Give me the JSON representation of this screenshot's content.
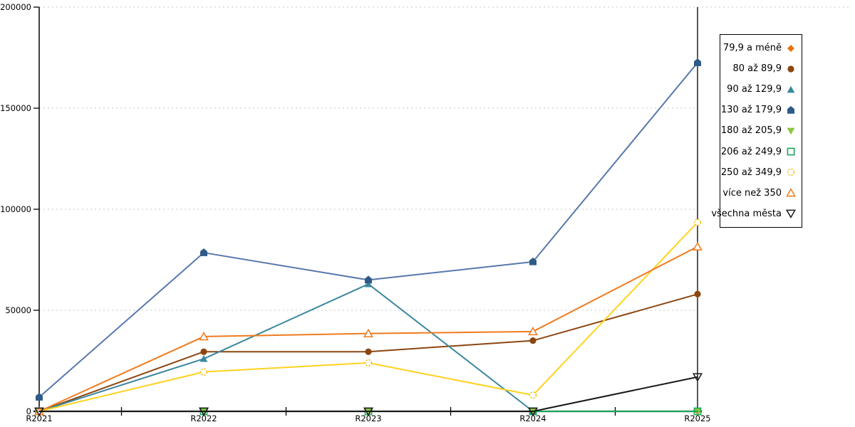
{
  "chart_data": {
    "type": "line",
    "title": "",
    "xlabel": "",
    "ylabel": "",
    "categories": [
      "R2021",
      "R2022",
      "R2023",
      "R2024",
      "R2025"
    ],
    "ylim": [
      0,
      200000
    ],
    "yticks": [
      0,
      50000,
      100000,
      150000,
      200000
    ],
    "ytick_labels": [
      "0",
      "50000",
      "100000",
      "150000",
      "200000"
    ],
    "grid": "horizontal-dashed",
    "legend_position": "right",
    "series": [
      {
        "name": "79,9 a méně",
        "marker": "diamond",
        "color": "#E2760F",
        "line_color": "#E2760F",
        "values": [
          0,
          null,
          null,
          null,
          0
        ]
      },
      {
        "name": "80 až 89,9",
        "marker": "circle",
        "color": "#8C4611",
        "line_color": "#8C4611",
        "values": [
          0,
          29500,
          29500,
          35000,
          58000
        ]
      },
      {
        "name": "90 až 129,9",
        "marker": "triangle-up",
        "color": "#3B87A0",
        "line_color": "#3B87A0",
        "values": [
          0,
          26000,
          63000,
          0,
          null
        ]
      },
      {
        "name": "130 až 179,9",
        "marker": "pentagon",
        "color": "#2E5A87",
        "line_color": "#5878AD",
        "values": [
          7000,
          78500,
          65000,
          74000,
          172500
        ]
      },
      {
        "name": "180 až 205,9",
        "marker": "triangle-down",
        "color": "#8CC63F",
        "line_color": "#8CC63F",
        "values": [
          0,
          0,
          0,
          0,
          0
        ]
      },
      {
        "name": "206 až 249,9",
        "marker": "square-open",
        "color": "#17A75B",
        "line_color": "#17A75B",
        "values": [
          0,
          0,
          0,
          0,
          0
        ]
      },
      {
        "name": "250 až 349,9",
        "marker": "circle-open",
        "color": "#F0C011",
        "line_color": "#FFD21E",
        "values": [
          0,
          19500,
          24000,
          8000,
          93500
        ]
      },
      {
        "name": "více než 350",
        "marker": "triangle-open",
        "color": "#F07B1E",
        "line_color": "#F07B1E",
        "values": [
          0,
          37000,
          38500,
          39500,
          81500
        ]
      },
      {
        "name": "všechna města",
        "marker": "triangle-down-open",
        "color": "#1A1A1A",
        "line_color": "#1A1A1A",
        "values": [
          0,
          0,
          0,
          0,
          17000
        ]
      }
    ],
    "colors": {
      "gridline": "#C6C6C6",
      "axis": "#000000",
      "background": "#FFFFFF"
    }
  }
}
